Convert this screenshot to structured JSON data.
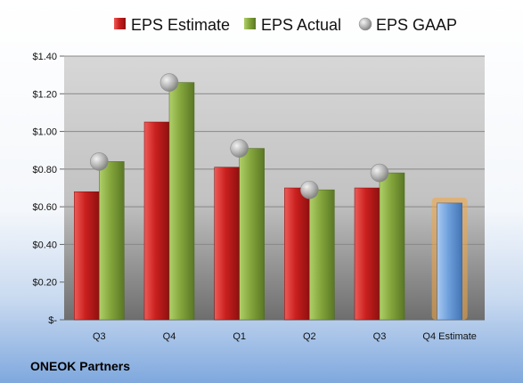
{
  "chart_data": {
    "type": "bar",
    "categories": [
      "Q3",
      "Q4",
      "Q1",
      "Q2",
      "Q3",
      "Q4 Estimate"
    ],
    "series": [
      {
        "name": "EPS Estimate",
        "values": [
          0.68,
          1.05,
          0.81,
          0.7,
          0.7,
          null
        ]
      },
      {
        "name": "EPS Actual",
        "values": [
          0.84,
          1.26,
          0.91,
          0.69,
          0.78,
          null
        ]
      },
      {
        "name": "EPS GAAP",
        "values": [
          0.84,
          1.26,
          0.91,
          0.69,
          0.78,
          null
        ],
        "marker": "circle"
      }
    ],
    "estimate": {
      "category": "Q4 Estimate",
      "value": 0.62,
      "color": "#6fa0dc",
      "glow_color": "#f4a640"
    },
    "ylim": [
      0,
      1.4
    ],
    "y_ticks": [
      "$-",
      "$0.20",
      "$0.40",
      "$0.60",
      "$0.80",
      "$1.00",
      "$1.20",
      "$1.40"
    ],
    "grid": true,
    "legend_position": "top",
    "colors": {
      "estimate": "#c9201e",
      "actual": "#84a63c",
      "gaap": "#a7a7a7"
    },
    "footer": "ONEOK Partners"
  }
}
